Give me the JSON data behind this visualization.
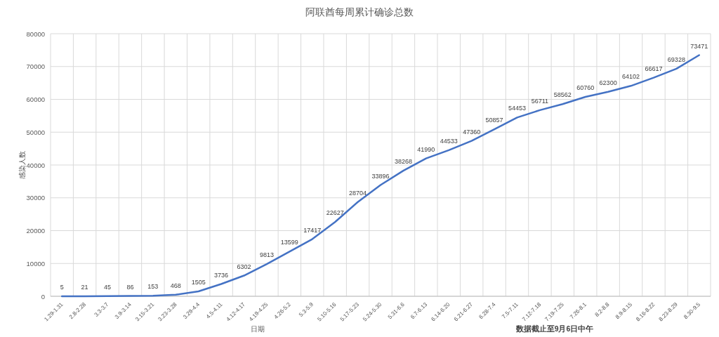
{
  "chart_data": {
    "type": "line",
    "title": "阿联酋每周累计确诊总数",
    "xlabel": "日期",
    "ylabel": "感染人数",
    "annotations": [
      "数据截止至9月6日中午"
    ],
    "categories": [
      "1.29-1.31",
      "2.8-2.28",
      "3.3-3.7",
      "3.9-3.14",
      "3.15-3.21",
      "3.23-3.28",
      "3.29-4.4",
      "4.5-4.11",
      "4.12-4.17",
      "4.19-4.25",
      "4.26-5.2",
      "5.3-5.9",
      "5.10-5.16",
      "5.17-5.23",
      "5.24-5.30",
      "5.31-6.6",
      "6.7-6.13",
      "6.14-6.20",
      "6.21-6.27",
      "6.28-7.4",
      "7.5-7.11",
      "7.12-7.18",
      "7.19-7.25",
      "7.26-8.1",
      "8.2-8.8",
      "8.9-8.15",
      "8.16-8.22",
      "8.23-8.29",
      "8.30-9.5"
    ],
    "series": [
      {
        "color": "#4472c4",
        "values": [
          5,
          21,
          45,
          86,
          153,
          468,
          1505,
          3736,
          6302,
          9813,
          13599,
          17417,
          22627,
          28704,
          33896,
          38268,
          41990,
          44533,
          47360,
          50857,
          54453,
          56711,
          58562,
          60760,
          62300,
          64102,
          66617,
          69328,
          73471
        ]
      }
    ],
    "ylim": [
      0,
      80000
    ],
    "yticks": [
      0,
      10000,
      20000,
      30000,
      40000,
      50000,
      60000,
      70000,
      80000
    ],
    "grid": true,
    "data_labels": true,
    "marker": "none",
    "line_style": "solid"
  }
}
